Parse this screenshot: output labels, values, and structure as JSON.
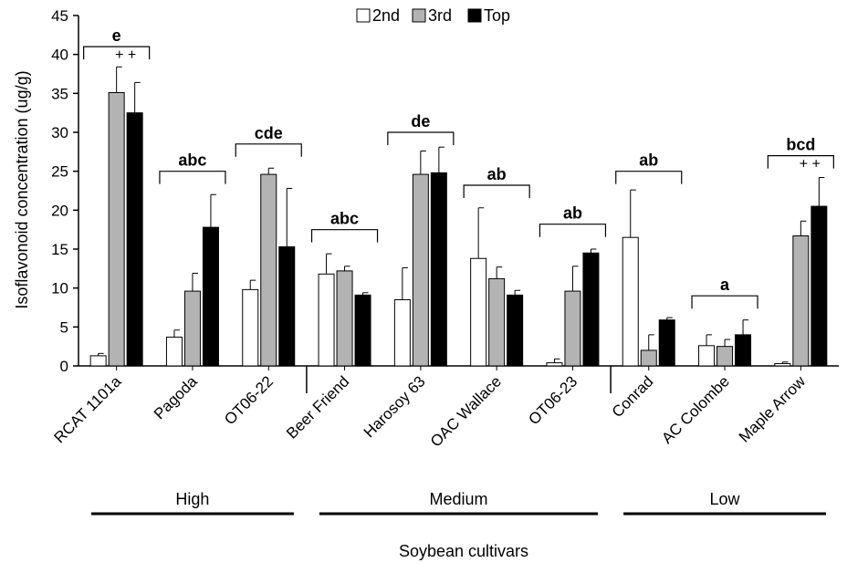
{
  "chart_data": {
    "type": "bar",
    "ylabel": "Isoflavonoid concentration (ug/g)",
    "xlabel": "Soybean cultivars",
    "ylim": [
      0,
      45
    ],
    "yticks": [
      0,
      5,
      10,
      15,
      20,
      25,
      30,
      35,
      40,
      45
    ],
    "grid": false,
    "legend_position": "top-center",
    "categories": [
      "RCAT 1101a",
      "Pagoda",
      "OT06-22",
      "Beer Friend",
      "Harosoy 63",
      "OAC Wallace",
      "OT06-23",
      "Conrad",
      "AC Colombe",
      "Maple Arrow"
    ],
    "series": [
      {
        "name": "2nd",
        "color": "#ffffff",
        "values": [
          1.3,
          3.7,
          9.8,
          11.8,
          8.5,
          13.8,
          0.4,
          16.5,
          2.6,
          0.3
        ],
        "errors": [
          0.3,
          0.9,
          1.2,
          2.6,
          4.1,
          6.5,
          0.5,
          6.1,
          1.4,
          0.2
        ]
      },
      {
        "name": "3rd",
        "color": "#b3b3b3",
        "values": [
          35.1,
          9.6,
          24.6,
          12.2,
          24.6,
          11.2,
          9.6,
          2.0,
          2.5,
          16.7
        ],
        "errors": [
          3.3,
          2.3,
          0.8,
          0.6,
          3.0,
          1.5,
          3.2,
          2.0,
          0.9,
          1.9
        ]
      },
      {
        "name": "Top",
        "color": "#000000",
        "values": [
          32.5,
          17.8,
          15.3,
          9.1,
          24.8,
          9.1,
          14.5,
          5.9,
          4.0,
          20.5
        ],
        "errors": [
          3.9,
          4.2,
          7.5,
          0.3,
          3.3,
          0.6,
          0.5,
          0.3,
          1.9,
          3.7
        ]
      }
    ],
    "significance": [
      {
        "label": "e",
        "bracket_y": 41.0,
        "marks": "+ +"
      },
      {
        "label": "abc",
        "bracket_y": 25.0,
        "marks": ""
      },
      {
        "label": "cde",
        "bracket_y": 28.5,
        "marks": ""
      },
      {
        "label": "abc",
        "bracket_y": 17.5,
        "marks": ""
      },
      {
        "label": "de",
        "bracket_y": 30.0,
        "marks": ""
      },
      {
        "label": "ab",
        "bracket_y": 23.2,
        "marks": ""
      },
      {
        "label": "ab",
        "bracket_y": 18.2,
        "marks": ""
      },
      {
        "label": "ab",
        "bracket_y": 25.0,
        "marks": ""
      },
      {
        "label": "a",
        "bracket_y": 9.0,
        "marks": ""
      },
      {
        "label": "bcd",
        "bracket_y": 27.0,
        "marks": "+ +"
      }
    ],
    "groups": [
      {
        "label": "High",
        "start": 0,
        "end": 2
      },
      {
        "label": "Medium",
        "start": 3,
        "end": 6
      },
      {
        "label": "Low",
        "start": 7,
        "end": 9
      }
    ]
  }
}
